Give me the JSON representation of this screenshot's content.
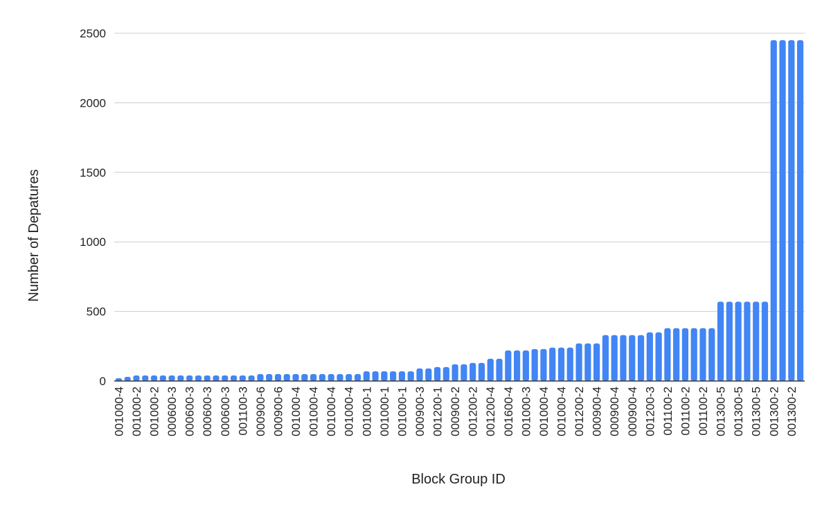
{
  "chart_data": {
    "type": "bar",
    "title": "",
    "xlabel": "Block Group ID",
    "ylabel": "Number of Depatures",
    "ylim": [
      0,
      2500
    ],
    "yticks": [
      0,
      500,
      1000,
      1500,
      2000,
      2500
    ],
    "grid": true,
    "legend": "none",
    "bar_color": "#4285f4",
    "categories": [
      "001000-4",
      "001000-4",
      "001000-2",
      "001000-2",
      "001000-2",
      "001000-2",
      "000600-3",
      "000600-3",
      "000600-3",
      "000600-3",
      "000600-3",
      "000600-3",
      "000600-3",
      "000600-3",
      "001100-3",
      "001100-3",
      "000900-6",
      "000900-6",
      "000900-6",
      "000900-6",
      "001000-4",
      "001000-4",
      "001000-4",
      "001000-4",
      "001000-4",
      "001000-4",
      "001000-4",
      "001000-4",
      "001000-1",
      "001000-1",
      "001000-1",
      "001000-1",
      "001000-1",
      "001000-1",
      "000900-3",
      "000900-3",
      "001200-1",
      "001200-1",
      "000900-2",
      "000900-2",
      "001200-2",
      "001200-2",
      "001200-4",
      "001200-4",
      "001600-4",
      "001600-4",
      "001000-3",
      "001000-3",
      "001000-4",
      "001000-4",
      "001000-4",
      "001000-4",
      "001200-2",
      "001200-2",
      "000900-4",
      "000900-4",
      "000900-4",
      "000900-4",
      "000900-4",
      "000900-4",
      "001200-3",
      "001200-3",
      "001100-2",
      "001100-2",
      "001100-2",
      "001100-2",
      "001100-2",
      "001100-2",
      "001300-5",
      "001300-5",
      "001300-5",
      "001300-5",
      "001300-5",
      "001300-5",
      "001300-2",
      "001300-2",
      "001300-2",
      "001300-2"
    ],
    "values": [
      20,
      30,
      40,
      40,
      40,
      40,
      40,
      40,
      40,
      40,
      40,
      40,
      40,
      40,
      40,
      40,
      50,
      50,
      50,
      50,
      50,
      50,
      50,
      50,
      50,
      50,
      50,
      50,
      70,
      70,
      70,
      70,
      70,
      70,
      90,
      90,
      100,
      100,
      120,
      120,
      130,
      130,
      160,
      160,
      220,
      220,
      220,
      230,
      230,
      240,
      240,
      240,
      270,
      270,
      270,
      330,
      330,
      330,
      330,
      330,
      350,
      350,
      380,
      380,
      380,
      380,
      380,
      380,
      570,
      570,
      570,
      570,
      570,
      570,
      2450,
      2450,
      2450,
      2450
    ]
  }
}
